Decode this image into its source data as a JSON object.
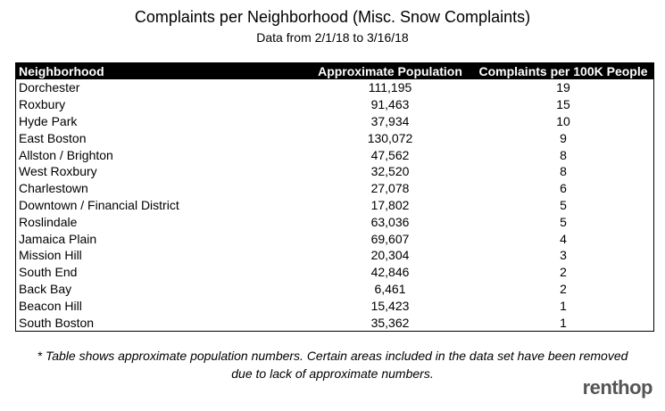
{
  "header": {
    "title": "Complaints per Neighborhood (Misc. Snow Complaints)",
    "subtitle": "Data from 2/1/18 to 3/16/18"
  },
  "table": {
    "columns": [
      "Neighborhood",
      "Approximate Population",
      "Complaints per 100K People"
    ],
    "rows": [
      [
        "Dorchester",
        "111,195",
        19
      ],
      [
        "Roxbury",
        "91,463",
        15
      ],
      [
        "Hyde Park",
        "37,934",
        10
      ],
      [
        "East Boston",
        "130,072",
        9
      ],
      [
        "Allston / Brighton",
        "47,562",
        8
      ],
      [
        "West Roxbury",
        "32,520",
        8
      ],
      [
        "Charlestown",
        "27,078",
        6
      ],
      [
        "Downtown / Financial District",
        "17,802",
        5
      ],
      [
        "Roslindale",
        "63,036",
        5
      ],
      [
        "Jamaica Plain",
        "69,607",
        4
      ],
      [
        "Mission Hill",
        "20,304",
        3
      ],
      [
        "South End",
        "42,846",
        2
      ],
      [
        "Back Bay",
        "6,461",
        2
      ],
      [
        "Beacon Hill",
        "15,423",
        1
      ],
      [
        "South Boston",
        "35,362",
        1
      ]
    ]
  },
  "footnote": [
    "* Table shows approximate population numbers. Certain areas included in the data set have been removed",
    "due to lack of approximate numbers."
  ],
  "logo": "renthop"
}
